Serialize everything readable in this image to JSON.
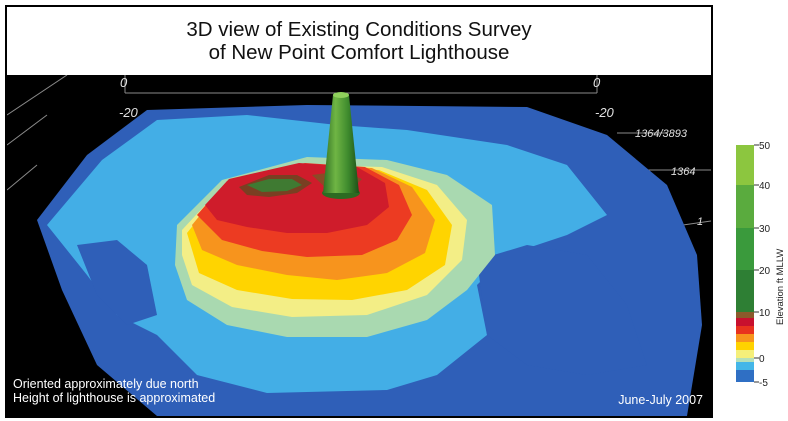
{
  "title": {
    "line1": "3D view of Existing Conditions Survey",
    "line2": "of New Point Comfort Lighthouse"
  },
  "captions": {
    "orientation": "Oriented approximately due north",
    "height_note": "Height of lighthouse is approximated",
    "date": "June-July 2007"
  },
  "axis_fragments": {
    "tl_zero": "0",
    "tl_minus20": "-20",
    "tr_zero": "0",
    "tr_minus20": "-20",
    "right_1": "1364/3893",
    "right_2": "1364",
    "right_3": "1"
  },
  "legend": {
    "title": "Elevation ft MLLW",
    "ticks": [
      "50",
      "40",
      "30",
      "20",
      "10",
      "0",
      "-5"
    ],
    "colors": [
      "#8cc63f",
      "#5aab3e",
      "#2f8a3a",
      "#8b5a2b",
      "#c8102e",
      "#e8321e",
      "#f7941d",
      "#ffd200",
      "#f5ef7a",
      "#b5e0b9",
      "#44b6e8",
      "#2f6fc4"
    ]
  }
}
